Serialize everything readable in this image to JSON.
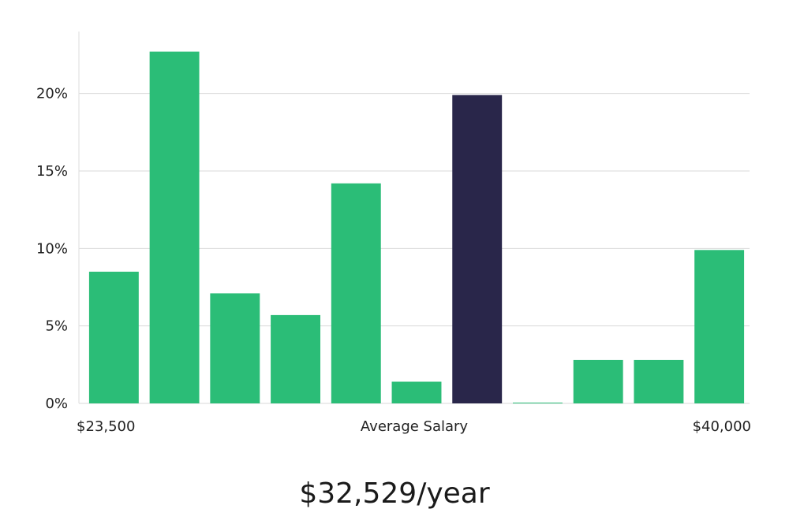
{
  "chart_data": {
    "type": "bar",
    "categories": [
      "$23,500",
      "",
      "",
      "",
      "",
      "",
      "Average Salary",
      "",
      "",
      "",
      "$40,000"
    ],
    "values": [
      8.5,
      22.7,
      7.1,
      5.7,
      14.2,
      1.4,
      19.9,
      0.05,
      2.8,
      2.8,
      9.9
    ],
    "highlight_index": 6,
    "ylim": [
      0,
      24
    ],
    "yticks": [
      0,
      5,
      10,
      15,
      20
    ],
    "ytick_labels": [
      "0%",
      "5%",
      "10%",
      "15%",
      "20%"
    ],
    "x_labels": [
      "$23,500",
      "Average Salary",
      "$40,000"
    ],
    "grid": true,
    "colors": {
      "bar": "#2bbd77",
      "highlight": "#29264a",
      "grid": "#d9d9d9",
      "axis": "#dddddd"
    }
  },
  "headline": "$32,529/year"
}
